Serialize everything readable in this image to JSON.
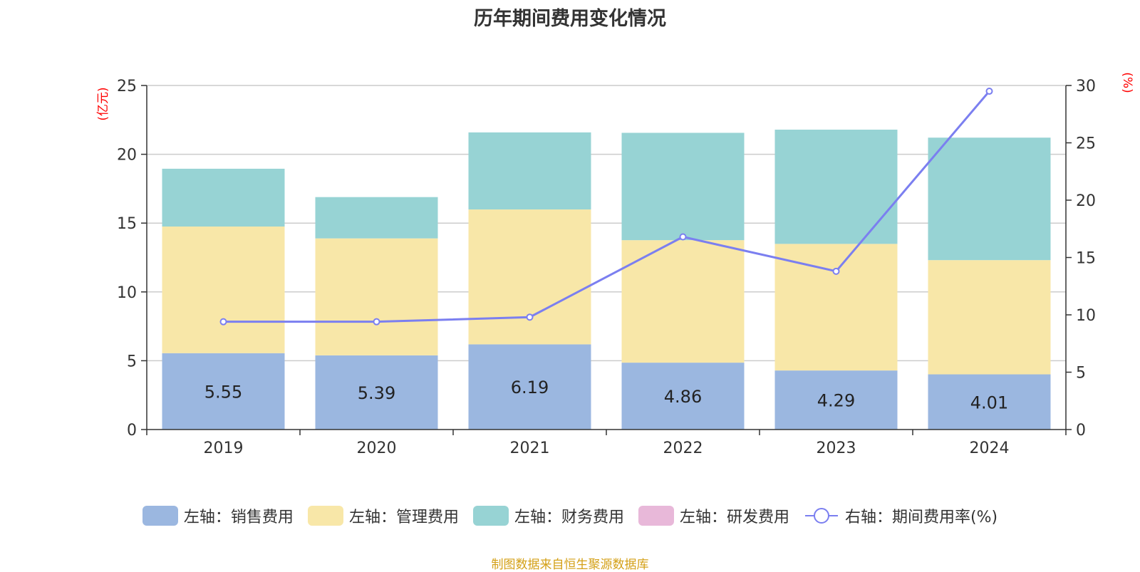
{
  "chart_data": {
    "type": "bar",
    "title": "历年期间费用变化情况",
    "categories": [
      "2019",
      "2020",
      "2021",
      "2022",
      "2023",
      "2024"
    ],
    "left_axis": {
      "unit_label": "(亿元)",
      "ylim": [
        0,
        25
      ],
      "ticks": [
        "0",
        "5",
        "10",
        "15",
        "20",
        "25"
      ]
    },
    "right_axis": {
      "unit_label": "(%)",
      "ylim": [
        0,
        30
      ],
      "ticks": [
        "0",
        "5",
        "10",
        "15",
        "20",
        "25",
        "30"
      ]
    },
    "series": [
      {
        "name": "左轴：销售费用",
        "chart_type": "stacked-bar",
        "axis": "left",
        "color": "#9bb7e0",
        "values": [
          5.55,
          5.39,
          6.19,
          4.86,
          4.29,
          4.01
        ],
        "labels": [
          "5.55",
          "5.39",
          "6.19",
          "4.86",
          "4.29",
          "4.01"
        ]
      },
      {
        "name": "左轴：管理费用",
        "chart_type": "stacked-bar",
        "axis": "left",
        "color": "#f8e7a8",
        "values": [
          9.2,
          8.5,
          9.8,
          8.9,
          9.2,
          8.3
        ]
      },
      {
        "name": "左轴：财务费用",
        "chart_type": "stacked-bar",
        "axis": "left",
        "color": "#97d3d4",
        "values": [
          4.2,
          3.0,
          5.6,
          7.8,
          8.3,
          8.9
        ]
      },
      {
        "name": "左轴：研发费用",
        "chart_type": "stacked-bar",
        "axis": "left",
        "color": "#e8b8d9",
        "values": [
          0,
          0,
          0,
          0,
          0,
          0
        ]
      },
      {
        "name": "右轴：期间费用率(%)",
        "chart_type": "line",
        "axis": "right",
        "color": "#7b7ff0",
        "values": [
          9.4,
          9.4,
          9.8,
          16.8,
          13.8,
          29.5
        ]
      }
    ],
    "grid": true,
    "legend_position": "bottom"
  },
  "footer": {
    "source": "制图数据来自恒生聚源数据库"
  }
}
